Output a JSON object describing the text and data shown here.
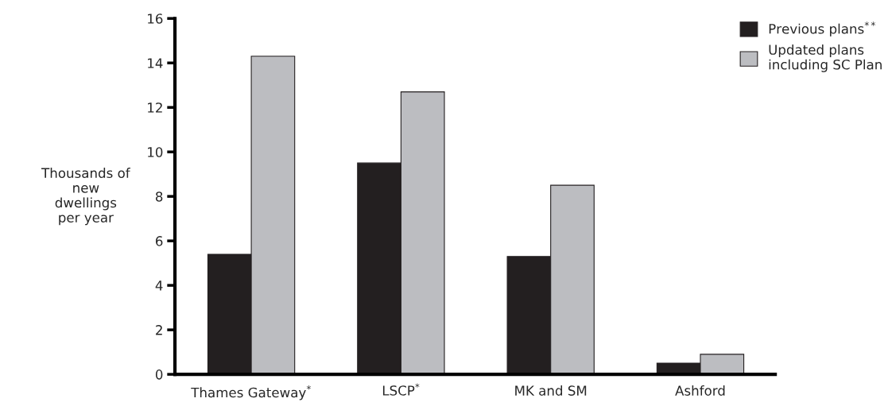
{
  "chart_data": {
    "type": "bar",
    "ylabel": "Thousands of\nnew\ndwellings\nper year",
    "categories": [
      "Thames Gateway$^{*}$",
      "LSCP$^{*}$",
      "MK and SM",
      "Ashford"
    ],
    "series": [
      {
        "name": "Previous plans$^{**}$",
        "color": "#231f20",
        "values": [
          5.4,
          9.5,
          5.3,
          0.5
        ]
      },
      {
        "name": "Updated plans\nincluding SC Plan",
        "color": "#bcbdc1",
        "values": [
          14.3,
          12.7,
          8.5,
          0.9
        ]
      }
    ],
    "ylim": [
      0,
      16
    ],
    "yticks": [
      0,
      2,
      4,
      6,
      8,
      10,
      12,
      14,
      16
    ],
    "grid": false,
    "legend": "top right"
  }
}
